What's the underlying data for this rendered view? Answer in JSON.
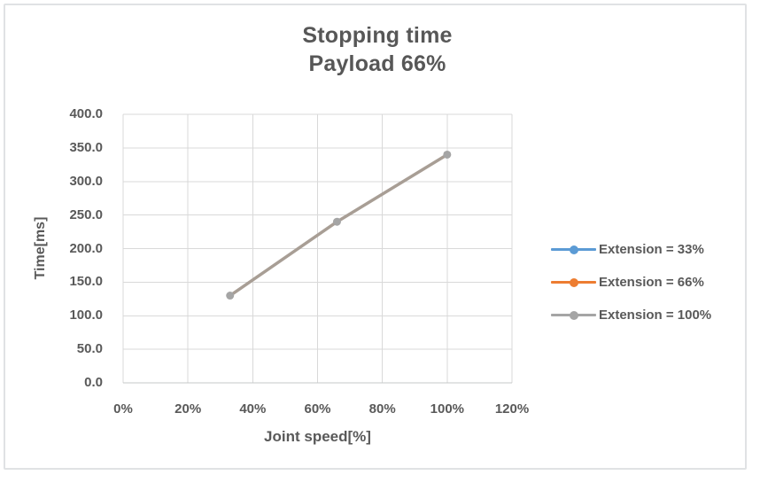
{
  "colors": {
    "background": "#FFFFFF",
    "frame_border": "#E0E2E4",
    "gridline": "#D9D9D9",
    "axis_line": "#C6C8C9",
    "text": "#595959"
  },
  "chart_data": {
    "type": "line",
    "title": "Stopping time",
    "subtitle": "Payload 66%",
    "xlabel": "Joint speed[%]",
    "ylabel": "Time[ms]",
    "xlim": [
      0,
      120
    ],
    "ylim": [
      0,
      400
    ],
    "grid": true,
    "legend_position": "right",
    "xticks": {
      "values": [
        0,
        20,
        40,
        60,
        80,
        100,
        120
      ],
      "labels": [
        "0%",
        "20%",
        "40%",
        "60%",
        "80%",
        "100%",
        "120%"
      ]
    },
    "yticks": {
      "values": [
        0,
        50,
        100,
        150,
        200,
        250,
        300,
        350,
        400
      ],
      "labels": [
        "0.0",
        "50.0",
        "100.0",
        "150.0",
        "200.0",
        "250.0",
        "300.0",
        "350.0",
        "400.0"
      ]
    },
    "series": [
      {
        "name": "Extension = 33%",
        "color": "#5B9BD5",
        "marker": "circle",
        "visible_in_plot": false,
        "x": null,
        "y": null,
        "note": "no separate line visible; likely coincident with Extension = 100% line"
      },
      {
        "name": "Extension = 66%",
        "color": "#ED7D31",
        "marker": "circle",
        "visible_in_plot": false,
        "x": null,
        "y": null,
        "note": "no separate line visible; likely coincident with Extension = 100% line"
      },
      {
        "name": "Extension = 100%",
        "color": "#A5A5A5",
        "line_color": "#A89E95",
        "marker": "circle",
        "visible_in_plot": true,
        "x": [
          33,
          66,
          100
        ],
        "y": [
          130,
          240,
          340
        ]
      }
    ]
  }
}
